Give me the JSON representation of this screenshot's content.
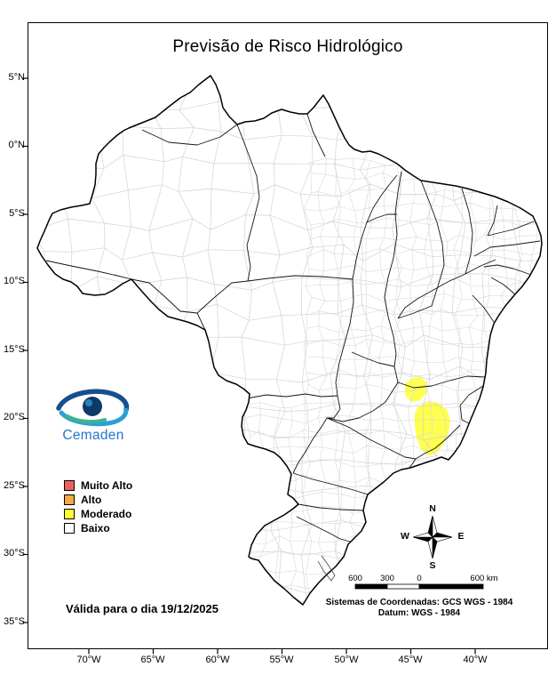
{
  "title": "Previsão de Risco Hidrológico",
  "logo": {
    "name": "Cemaden",
    "wordmark_color": "#1e78c8"
  },
  "legend": {
    "items": [
      {
        "label": "Muito Alto",
        "color": "#ef5e5e"
      },
      {
        "label": "Alto",
        "color": "#f3a93f"
      },
      {
        "label": "Moderado",
        "color": "#ffff33"
      },
      {
        "label": "Baixo",
        "color": "#ffffff"
      }
    ]
  },
  "validity_note": "Válida para o dia 19/12/2025",
  "footer": {
    "coordinate_system": "Sistemas de Coordenadas: GCS WGS - 1984",
    "datum": "Datum: WGS - 1984"
  },
  "scale_bar": {
    "labels": [
      "600",
      "300",
      "0",
      "600 km"
    ]
  },
  "compass": {
    "north": "N",
    "south": "S",
    "east": "E",
    "west": "W"
  },
  "axes": {
    "latitude_labels": [
      "5°N",
      "0°N",
      "5°S",
      "10°S",
      "15°S",
      "20°S",
      "25°S",
      "30°S",
      "35°S"
    ],
    "longitude_labels": [
      "70°W",
      "65°W",
      "60°W",
      "55°W",
      "50°W",
      "45°W",
      "40°W"
    ]
  },
  "map": {
    "moderado_fill": "#ffff4d",
    "highlighted_areas": [
      {
        "risk_level": "Moderado"
      },
      {
        "risk_level": "Moderado"
      }
    ]
  }
}
